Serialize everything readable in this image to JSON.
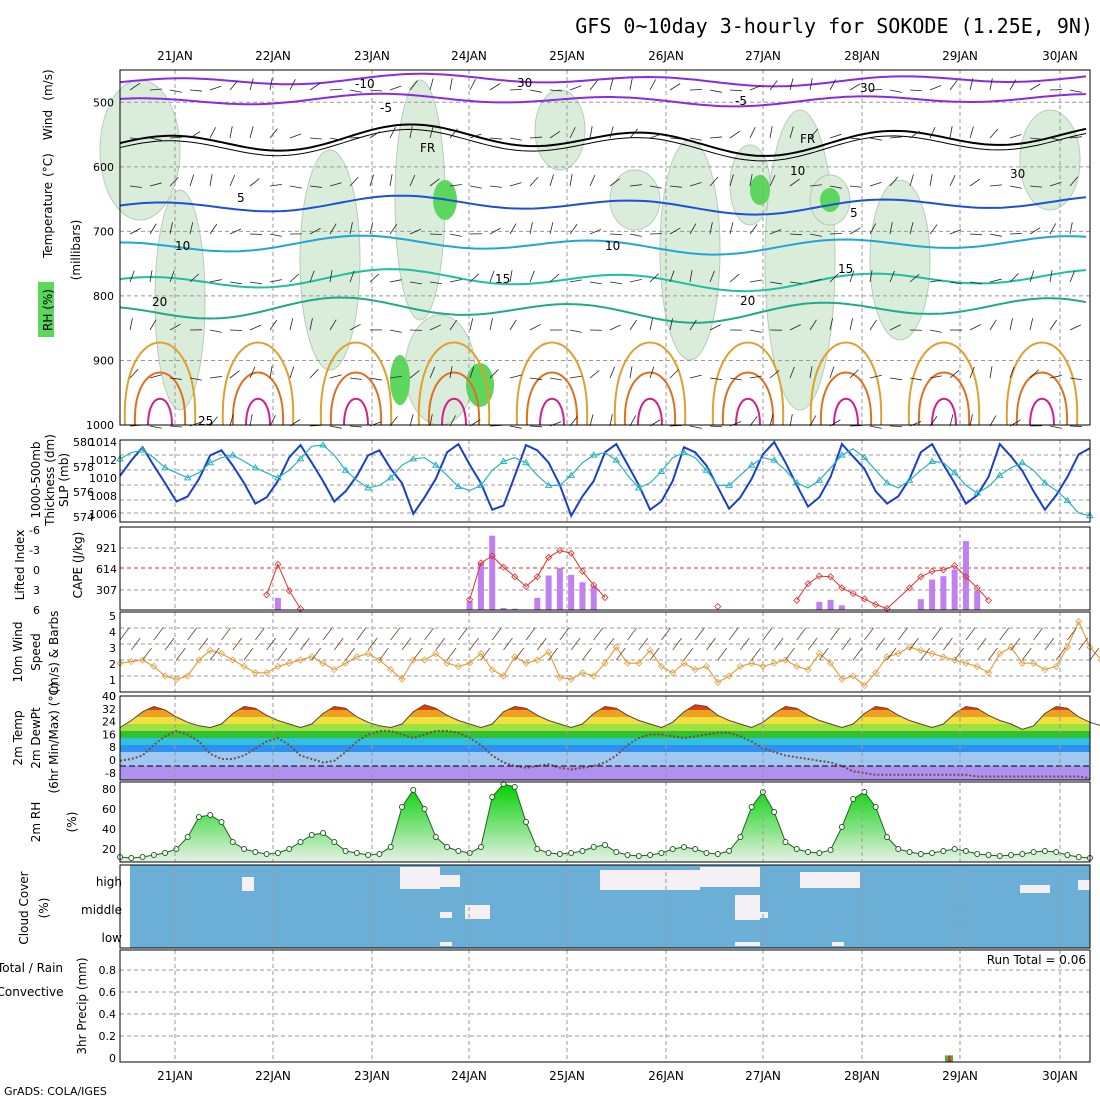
{
  "title": "GFS 0~10day 3-hourly for SOKODE (1.25E, 9N)",
  "credit": "GrADS: COLA/IGES",
  "run_total": "Run Total = 0.06",
  "dates": [
    "21JAN",
    "22JAN",
    "23JAN",
    "24JAN",
    "25JAN",
    "26JAN",
    "27JAN",
    "28JAN",
    "29JAN",
    "30JAN"
  ],
  "panels": {
    "upper": {
      "ylabel_left": [
        "RH (%)",
        "Temperature",
        "(°C)",
        "Wind",
        "(m/s)"
      ],
      "ylabel_right": "(millibars)",
      "pressure_ticks": [
        "500",
        "600",
        "700",
        "800",
        "900",
        "1000"
      ],
      "contour_labels": [
        "-10",
        "-5",
        "-5",
        "FR",
        "FR",
        "5",
        "5",
        "10",
        "10",
        "15",
        "15",
        "20",
        "20",
        "25",
        "30",
        "30",
        "10",
        "30"
      ]
    },
    "thickness": {
      "ylabel_a": "1000-500mb",
      "ylabel_b": "Thickness (dm)",
      "ylabel_c": "SLP (mb)",
      "left_ticks": [
        "580",
        "578",
        "576",
        "574"
      ],
      "right_ticks": [
        "1014",
        "1012",
        "1010",
        "1008",
        "1006"
      ]
    },
    "cape": {
      "ylabel_a": "Lifted Index",
      "ylabel_b": "CAPE (J/kg)",
      "left_ticks": [
        "-6",
        "-3",
        "0",
        "3",
        "6"
      ],
      "right_ticks": [
        "921",
        "614",
        "307"
      ]
    },
    "wind10": {
      "ylabel_a": "10m Wind",
      "ylabel_b": "Speed",
      "ylabel_c": "(m/s) & Barbs",
      "ticks": [
        "5",
        "4",
        "3",
        "2",
        "1",
        "0"
      ]
    },
    "temp2m": {
      "ylabel_a": "2m Temp",
      "ylabel_b": "2m DewPt",
      "ylabel_c": "(6hr Min/Max) (°C)",
      "ticks": [
        "40",
        "32",
        "24",
        "16",
        "8",
        "0",
        "-8"
      ]
    },
    "rh2m": {
      "ylabel_a": "2m RH",
      "ylabel_b": "(%)",
      "ticks": [
        "80",
        "60",
        "40",
        "20"
      ]
    },
    "cloud": {
      "ylabel_a": "Cloud Cover",
      "ylabel_b": "(%)",
      "levels": [
        "high",
        "middle",
        "low"
      ]
    },
    "precip": {
      "ylabel_a": "Total / Rain",
      "ylabel_b": "Convective",
      "ylabel_c": "3hr Precip (mm)",
      "ticks": [
        "0.8",
        "0.6",
        "0.4",
        "0.2",
        "0"
      ]
    }
  },
  "colors": {
    "rh_green": "#5cd65c",
    "temp_purple": "#8a2be2",
    "temp_blue": "#1f4fd6",
    "temp_cyan": "#1fa6d6",
    "temp_teal": "#1fbf9f",
    "temp_orange": "#e0a030",
    "temp_red": "#e07020",
    "temp_magenta": "#d0208a",
    "slp": "#1a3fc8",
    "thickness": "#2ab3c0",
    "lifted": "#e03030",
    "cape_bar": "#c080f0",
    "wind_orange": "#e0a040",
    "cloud_blue": "#6baed6",
    "rh2m_green": "#30c030"
  },
  "chart_data": [
    {
      "type": "line",
      "name_key": "thickness_slp",
      "x_step_hours": 3,
      "series": [
        {
          "name": "SLP (mb)",
          "axis": "right",
          "ylim": [
            1006,
            1014
          ],
          "values": [
            1010.5,
            1012,
            1013.3,
            1011.5,
            1009.8,
            1008,
            1008.5,
            1010.2,
            1012.5,
            1013,
            1011.5,
            1009.8,
            1007.8,
            1008.4,
            1010,
            1012.3,
            1013.5,
            1011.8,
            1010,
            1008,
            1009,
            1010.5,
            1012.5,
            1013,
            1011.2,
            1009.8,
            1006.8,
            1008.4,
            1010.2,
            1012.8,
            1013.6,
            1011.6,
            1009.8,
            1007.2,
            1007.6,
            1010.5,
            1013.5,
            1013,
            1011.8,
            1009.6,
            1006.6,
            1008.5,
            1010,
            1012.8,
            1013.6,
            1011.6,
            1009.6,
            1007.2,
            1008,
            1010,
            1013.3,
            1012.8,
            1011.5,
            1009.4,
            1007.3,
            1008.4,
            1010.2,
            1012.6,
            1013.8,
            1011.8,
            1009.6,
            1007.5,
            1008.4,
            1010.4,
            1013.6,
            1012.4,
            1011.2,
            1009,
            1007.8,
            1008.5,
            1010.2,
            1012.8,
            1013.6,
            1011.6,
            1009.8,
            1007.8,
            1008.6,
            1010.4,
            1013.6,
            1012.4,
            1011,
            1009,
            1007.2,
            1008.6,
            1010.4,
            1012.6,
            1013.2
          ]
        },
        {
          "name": "1000-500mb Thickness (dm)",
          "axis": "left",
          "ylim": [
            573.5,
            580
          ],
          "values": [
            578.5,
            579,
            579.2,
            578.6,
            577.8,
            577.4,
            577,
            577.4,
            578.2,
            578.6,
            578.8,
            578.3,
            577.8,
            577.4,
            577,
            577.6,
            578.5,
            579.5,
            579.6,
            578.8,
            577.6,
            576.8,
            576.2,
            576.4,
            577,
            578,
            578.5,
            578.6,
            578,
            577.2,
            576.3,
            576,
            576.4,
            577.6,
            578.3,
            578.6,
            578.2,
            577.2,
            576.4,
            576.4,
            577.2,
            578.2,
            578.8,
            579,
            578.4,
            577.2,
            576.2,
            576.6,
            577.5,
            578.6,
            579,
            578.6,
            577.6,
            576.4,
            576.4,
            577.2,
            578,
            578.6,
            578.4,
            577.6,
            576.6,
            576.2,
            576.8,
            577.8,
            578.8,
            579.3,
            578.6,
            577.6,
            576.6,
            576.2,
            576.8,
            577.6,
            578.3,
            578.2,
            577.4,
            576.4,
            575.8,
            576.3,
            577.2,
            577.8,
            578.2,
            577.6,
            576.6,
            576,
            575.2,
            574.2,
            574
          ]
        }
      ]
    },
    {
      "type": "bar",
      "name_key": "cape_li",
      "series": [
        {
          "name": "CAPE (J/kg)",
          "axis": "right",
          "ylim": [
            0,
            1228
          ],
          "points": [
            [
              14,
              180
            ],
            [
              31,
              130
            ],
            [
              32,
              700
            ],
            [
              33,
              1100
            ],
            [
              34,
              30
            ],
            [
              35,
              20
            ],
            [
              37,
              180
            ],
            [
              38,
              510
            ],
            [
              39,
              620
            ],
            [
              40,
              520
            ],
            [
              41,
              410
            ],
            [
              42,
              360
            ],
            [
              62,
              120
            ],
            [
              63,
              150
            ],
            [
              64,
              70
            ],
            [
              71,
              160
            ],
            [
              72,
              450
            ],
            [
              73,
              500
            ],
            [
              74,
              600
            ],
            [
              75,
              1020
            ],
            [
              76,
              280
            ]
          ]
        },
        {
          "name": "Lifted Index",
          "axis": "left",
          "ylim": [
            6,
            -6
          ],
          "points": [
            [
              13,
              3.8
            ],
            [
              14,
              -0.6
            ],
            [
              15,
              3.2
            ],
            [
              16,
              5.8
            ],
            [
              31,
              4.5
            ],
            [
              32,
              -0.8
            ],
            [
              33,
              -1.8
            ],
            [
              34,
              -0.2
            ],
            [
              35,
              1.2
            ],
            [
              36,
              2.6
            ],
            [
              37,
              1.2
            ],
            [
              38,
              -1.6
            ],
            [
              39,
              -2.6
            ],
            [
              40,
              -2.2
            ],
            [
              41,
              0.4
            ],
            [
              42,
              2.4
            ],
            [
              43,
              4.2
            ],
            [
              53,
              5.5
            ],
            [
              60,
              4.6
            ],
            [
              61,
              2.2
            ],
            [
              62,
              1.1
            ],
            [
              63,
              1.2
            ],
            [
              64,
              2.8
            ],
            [
              65,
              3.6
            ],
            [
              66,
              4.4
            ],
            [
              67,
              5.2
            ],
            [
              68,
              5.8
            ],
            [
              70,
              2.8
            ],
            [
              71,
              1.2
            ],
            [
              72,
              0.4
            ],
            [
              73,
              0.2
            ],
            [
              74,
              -0.4
            ],
            [
              75,
              1.2
            ],
            [
              76,
              2.8
            ],
            [
              77,
              4.6
            ]
          ]
        }
      ]
    },
    {
      "type": "line",
      "name_key": "wind10m",
      "ylabel": "Speed",
      "ylim": [
        0,
        5
      ],
      "values": [
        1.8,
        1.9,
        2,
        1.6,
        1,
        0.8,
        1,
        2,
        2.6,
        2.4,
        2,
        1.6,
        1.2,
        1.2,
        1.6,
        1.8,
        2,
        2.2,
        1.8,
        1.4,
        1.8,
        2.2,
        2.4,
        2,
        1.4,
        0.8,
        2,
        2,
        2.4,
        1.8,
        1.6,
        1.8,
        2.4,
        1.4,
        1,
        2.2,
        1.8,
        2,
        2.5,
        0.9,
        0.8,
        1.2,
        1,
        1.8,
        2.8,
        1.8,
        1.8,
        2.6,
        1.6,
        1.2,
        1.8,
        1.4,
        1.6,
        0.6,
        1,
        1.6,
        1.8,
        1.6,
        1.8,
        2,
        1.6,
        1.4,
        2.4,
        1.8,
        0.8,
        1,
        0.4,
        1.2,
        2.2,
        2.4,
        2.8,
        2.6,
        2.4,
        2.2,
        2,
        1.8,
        1.6,
        1.2,
        2.4,
        2.8,
        1.8,
        1.8,
        1.4,
        1.6,
        2.8,
        4.4,
        2.8,
        2,
        2,
        3.8,
        4.6,
        3.2,
        2.2,
        1.8,
        2.8,
        3
      ]
    },
    {
      "type": "area",
      "name_key": "temp2m",
      "ylim": [
        -8,
        40
      ],
      "temp": [
        22,
        26,
        31,
        34,
        32,
        28,
        25,
        23,
        22,
        24,
        30,
        34,
        33,
        29,
        26,
        24,
        22,
        24,
        30,
        34,
        33,
        28,
        25,
        23,
        22,
        24,
        31,
        35,
        33,
        29,
        26,
        24,
        22,
        24,
        31,
        34,
        33,
        29,
        26,
        24,
        22,
        24,
        30,
        34,
        33,
        29,
        26,
        24,
        22,
        25,
        31,
        35,
        34,
        29,
        26,
        24,
        22,
        25,
        30,
        34,
        33,
        29,
        26,
        24,
        22,
        24,
        30,
        34,
        33,
        29,
        26,
        24,
        22,
        24,
        30,
        34,
        33,
        29,
        26,
        24,
        21,
        23,
        30,
        34,
        33,
        28,
        25,
        23,
        21
      ],
      "dewpt": [
        3,
        4,
        6,
        12,
        17,
        20,
        18,
        14,
        7,
        4,
        4,
        6,
        10,
        14,
        16,
        12,
        6,
        4,
        2,
        3,
        8,
        14,
        18,
        20,
        20,
        18,
        16,
        18,
        20,
        20,
        19,
        16,
        12,
        6,
        2,
        0,
        -1,
        0,
        1,
        -1,
        -2,
        -1,
        0,
        2,
        6,
        12,
        16,
        18,
        18,
        17,
        16,
        17,
        18,
        19,
        19,
        17,
        14,
        10,
        8,
        6,
        5,
        4,
        3,
        2,
        0,
        -3,
        -4,
        -5,
        -5,
        -5,
        -5,
        -5,
        -5,
        -5,
        -5,
        -5,
        -6,
        -6,
        -6,
        -6,
        -6,
        -6,
        -6,
        -6,
        -6,
        -6,
        -7
      ]
    },
    {
      "type": "area",
      "name_key": "rh2m",
      "ylim": [
        5,
        85
      ],
      "values": [
        10,
        9,
        10,
        12,
        14,
        18,
        30,
        50,
        52,
        45,
        25,
        18,
        15,
        13,
        14,
        18,
        25,
        32,
        34,
        25,
        16,
        14,
        12,
        13,
        20,
        60,
        77,
        58,
        30,
        20,
        16,
        14,
        20,
        70,
        83,
        80,
        45,
        18,
        14,
        13,
        14,
        16,
        20,
        22,
        15,
        12,
        11,
        12,
        14,
        18,
        20,
        18,
        14,
        13,
        16,
        30,
        60,
        75,
        55,
        25,
        18,
        15,
        14,
        17,
        40,
        68,
        75,
        60,
        30,
        18,
        15,
        13,
        14,
        16,
        18,
        16,
        13,
        12,
        11,
        12,
        13,
        15,
        16,
        15,
        12,
        10,
        9,
        11,
        13,
        15,
        17
      ]
    },
    {
      "type": "bar",
      "name_key": "precip",
      "ylim": [
        0,
        1
      ],
      "points": [
        [
          73.5,
          0.06
        ]
      ]
    }
  ]
}
